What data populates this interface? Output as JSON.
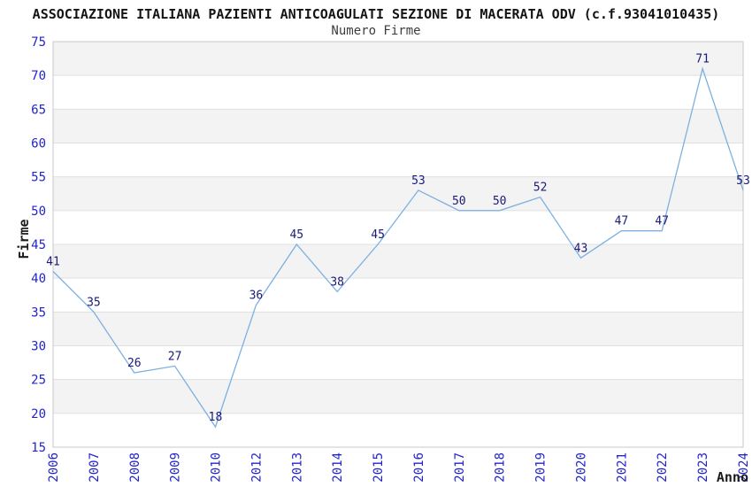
{
  "chart_data": {
    "type": "line",
    "title": "ASSOCIAZIONE ITALIANA PAZIENTI ANTICOAGULATI SEZIONE DI MACERATA ODV (c.f.93041010435)",
    "subtitle": "Numero Firme",
    "xlabel": "Anno",
    "ylabel": "Firme",
    "categories": [
      "2006",
      "2007",
      "2008",
      "2009",
      "2010",
      "2012",
      "2013",
      "2014",
      "2015",
      "2016",
      "2017",
      "2018",
      "2019",
      "2020",
      "2021",
      "2022",
      "2023",
      "2024"
    ],
    "values": [
      41,
      35,
      26,
      27,
      18,
      36,
      45,
      38,
      45,
      53,
      50,
      50,
      52,
      43,
      47,
      47,
      71,
      53
    ],
    "ylim": [
      15,
      75
    ],
    "yticks": [
      15,
      20,
      25,
      30,
      35,
      40,
      45,
      50,
      55,
      60,
      65,
      70,
      75
    ],
    "grid": "horizontal-bands",
    "legend": "none",
    "colors": {
      "line": "#7cb0e2",
      "data_label": "#1a1a78",
      "tick_label": "#2323cc",
      "band_fill": "#f3f3f3",
      "band_alt_fill": "#ffffff",
      "grid_line": "#e0e0e0",
      "plot_border": "#c9c9c9"
    }
  }
}
